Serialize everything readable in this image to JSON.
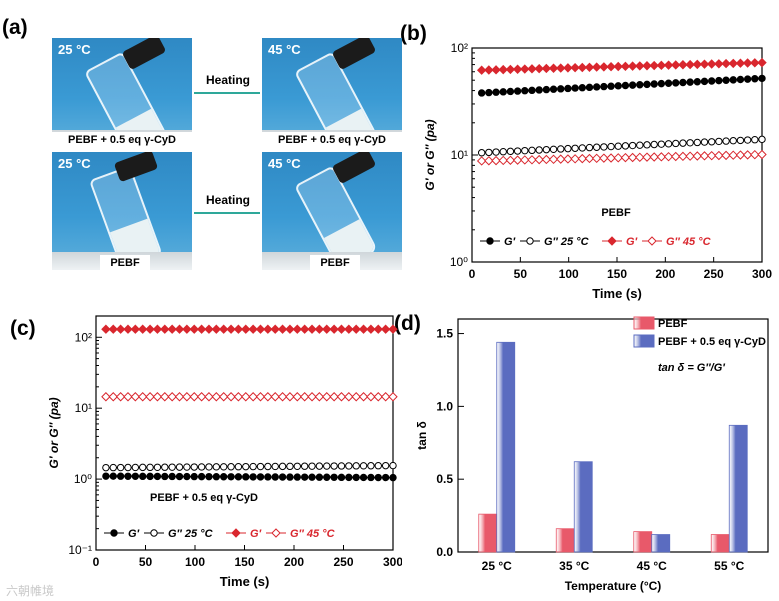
{
  "panels": {
    "a": "(a)",
    "b": "(b)",
    "c": "(c)",
    "d": "(d)"
  },
  "photos": {
    "temp_25": "25 °C",
    "temp_45": "45 °C",
    "label_top": "PEBF + 0.5 eq γ-CyD",
    "label_bottom": "PEBF",
    "heating": "Heating"
  },
  "watermark": "六朝帷境",
  "colors": {
    "black": "#000000",
    "red": "#d9272e",
    "bar_red": "#e8596a",
    "bar_blue": "#5b6cc0"
  },
  "chart_data": [
    {
      "id": "b",
      "type": "scatter",
      "title": "PEBF",
      "xlabel": "Time (s)",
      "ylabel": "G′ or G″ (pa)",
      "xlim": [
        0,
        300
      ],
      "ylim_log10": [
        0,
        2
      ],
      "xticks": [
        0,
        50,
        100,
        150,
        200,
        250,
        300
      ],
      "yticks": [
        "10⁰",
        "10¹",
        "10²"
      ],
      "legend": [
        {
          "label": "G′",
          "marker": "filled",
          "color": "#000000"
        },
        {
          "label": "G″ 25 °C",
          "marker": "open",
          "color": "#000000"
        },
        {
          "label": "G′",
          "marker": "filled",
          "color": "#d9272e"
        },
        {
          "label": "G″ 45 °C",
          "marker": "open",
          "color": "#d9272e"
        }
      ],
      "series": [
        {
          "name": "G′ 25 °C",
          "start": 38,
          "end": 52,
          "marker": "filled",
          "color": "#000000"
        },
        {
          "name": "G″ 25 °C",
          "start": 10.5,
          "end": 14,
          "marker": "open",
          "color": "#000000"
        },
        {
          "name": "G′ 45 °C",
          "start": 62,
          "end": 73,
          "marker": "filled",
          "color": "#d9272e"
        },
        {
          "name": "G″ 45 °C",
          "start": 8.8,
          "end": 10.1,
          "marker": "open",
          "color": "#d9272e"
        }
      ]
    },
    {
      "id": "c",
      "type": "scatter",
      "title": "PEBF + 0.5 eq γ-CyD",
      "xlabel": "Time (s)",
      "ylabel": "G′ or G″ (pa)",
      "xlim": [
        0,
        300
      ],
      "ylim_log10": [
        -1,
        2.3
      ],
      "xticks": [
        0,
        50,
        100,
        150,
        200,
        250,
        300
      ],
      "yticks": [
        "10⁻¹",
        "10⁰",
        "10¹",
        "10²"
      ],
      "legend": [
        {
          "label": "G′",
          "marker": "filled",
          "color": "#000000"
        },
        {
          "label": "G″ 25 °C",
          "marker": "open",
          "color": "#000000"
        },
        {
          "label": "G′",
          "marker": "filled",
          "color": "#d9272e"
        },
        {
          "label": "G″ 45 °C",
          "marker": "open",
          "color": "#d9272e"
        }
      ],
      "series": [
        {
          "name": "G′ 25 °C",
          "start": 1.1,
          "end": 1.05,
          "marker": "filled",
          "color": "#000000"
        },
        {
          "name": "G″ 25 °C",
          "start": 1.45,
          "end": 1.55,
          "marker": "open",
          "color": "#000000"
        },
        {
          "name": "G′ 45 °C",
          "start": 130,
          "end": 130,
          "marker": "filled",
          "color": "#d9272e"
        },
        {
          "name": "G″ 45 °C",
          "start": 14.5,
          "end": 14.5,
          "marker": "open",
          "color": "#d9272e"
        }
      ]
    },
    {
      "id": "d",
      "type": "bar",
      "xlabel": "Temperature (°C)",
      "ylabel": "tan δ",
      "ylim": [
        0,
        1.6
      ],
      "yticks": [
        "0.0",
        "0.5",
        "1.0",
        "1.5"
      ],
      "categories": [
        "25 °C",
        "35 °C",
        "45 °C",
        "55 °C"
      ],
      "annotation": "tan δ = G″/G′",
      "series": [
        {
          "name": "PEBF",
          "values": [
            0.26,
            0.16,
            0.14,
            0.12
          ],
          "color": "#e8596a"
        },
        {
          "name": "PEBF + 0.5 eq γ-CyD",
          "values": [
            1.44,
            0.62,
            0.12,
            0.87
          ],
          "color": "#5b6cc0"
        }
      ]
    }
  ]
}
